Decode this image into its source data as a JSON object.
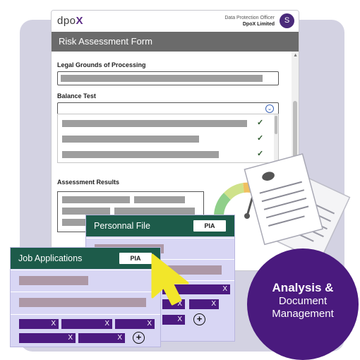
{
  "header": {
    "logo_text": "dpo",
    "logo_accent": "X",
    "officer_role": "Data Protection Officer",
    "officer_org": "DpoX Limited",
    "avatar_initial": "S"
  },
  "form": {
    "title": "Risk Assessment Form",
    "sections": {
      "legal_grounds": "Legal Grounds of Processing",
      "balance_test": "Balance Test",
      "assessment_results": "Assessment Results"
    },
    "dropdown_icon": "chevron-down-circle-icon",
    "checks": [
      "✓",
      "✓",
      "✓"
    ]
  },
  "cards": {
    "personal_file": {
      "title": "Personnal File",
      "badge": "PIA"
    },
    "job_applications": {
      "title": "Job Applications",
      "badge": "PIA"
    }
  },
  "chip_close": "X",
  "plus_symbol": "+",
  "promo": {
    "line1": "Analysis &",
    "line2": "Document",
    "line3": "Management"
  },
  "colors": {
    "card_header": "#1d5b4a",
    "chip": "#4c1a80",
    "circle": "#4a1a7e",
    "cursor": "#f2e62a",
    "form_title_bar": "#6b6b6b"
  }
}
